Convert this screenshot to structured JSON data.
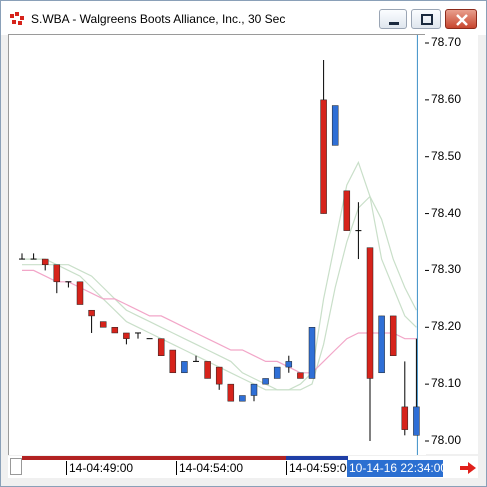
{
  "window": {
    "title": "S.WBA - Walgreens Boots Alliance, Inc., 30 Sec",
    "app_icon": "chart-app-icon",
    "controls": [
      "minimize-icon",
      "maximize-icon",
      "close-icon"
    ]
  },
  "colors": {
    "up_candle": "#2f6fd6",
    "down_candle": "#d6231b",
    "ma_fast": "#c9dfc9",
    "ma_slow": "#f2a6c8",
    "crosshair": "#3b8fc7",
    "scroll_active": "#1f3ea6",
    "scroll_inactive": "#b22222",
    "label_bg": "#2b6fd1",
    "arrow": "#e0201b"
  },
  "x_axis": {
    "ticks": [
      "14-04:49:00",
      "14-04:54:00",
      "14-04:59:00"
    ],
    "crosshair_label": "10-14-16 22:34:00"
  },
  "y_axis": {
    "ticks": [
      "78.70",
      "78.60",
      "78.50",
      "78.40",
      "78.30",
      "78.20",
      "78.10",
      "78.00"
    ]
  },
  "chart_data": {
    "type": "candlestick",
    "title": "S.WBA - Walgreens Boots Alliance, Inc., 30 Sec",
    "ylim": [
      77.98,
      78.72
    ],
    "candles": [
      {
        "open": 78.32,
        "high": 78.33,
        "low": 78.32,
        "close": 78.32
      },
      {
        "open": 78.32,
        "high": 78.33,
        "low": 78.32,
        "close": 78.32
      },
      {
        "open": 78.32,
        "high": 78.32,
        "low": 78.3,
        "close": 78.31
      },
      {
        "open": 78.31,
        "high": 78.31,
        "low": 78.26,
        "close": 78.28
      },
      {
        "open": 78.28,
        "high": 78.28,
        "low": 78.27,
        "close": 78.28
      },
      {
        "open": 78.28,
        "high": 78.28,
        "low": 78.24,
        "close": 78.24
      },
      {
        "open": 78.23,
        "high": 78.23,
        "low": 78.19,
        "close": 78.22
      },
      {
        "open": 78.21,
        "high": 78.21,
        "low": 78.2,
        "close": 78.2
      },
      {
        "open": 78.2,
        "high": 78.2,
        "low": 78.19,
        "close": 78.19
      },
      {
        "open": 78.19,
        "high": 78.19,
        "low": 78.17,
        "close": 78.18
      },
      {
        "open": 78.19,
        "high": 78.19,
        "low": 78.18,
        "close": 78.19
      },
      {
        "open": 78.18,
        "high": 78.18,
        "low": 78.18,
        "close": 78.18
      },
      {
        "open": 78.18,
        "high": 78.18,
        "low": 78.15,
        "close": 78.15
      },
      {
        "open": 78.16,
        "high": 78.16,
        "low": 78.12,
        "close": 78.12
      },
      {
        "open": 78.12,
        "high": 78.14,
        "low": 78.12,
        "close": 78.14
      },
      {
        "open": 78.14,
        "high": 78.15,
        "low": 78.14,
        "close": 78.14
      },
      {
        "open": 78.14,
        "high": 78.14,
        "low": 78.11,
        "close": 78.11
      },
      {
        "open": 78.13,
        "high": 78.13,
        "low": 78.09,
        "close": 78.1
      },
      {
        "open": 78.1,
        "high": 78.1,
        "low": 78.07,
        "close": 78.07
      },
      {
        "open": 78.07,
        "high": 78.08,
        "low": 78.07,
        "close": 78.08
      },
      {
        "open": 78.08,
        "high": 78.1,
        "low": 78.07,
        "close": 78.1
      },
      {
        "open": 78.1,
        "high": 78.11,
        "low": 78.1,
        "close": 78.11
      },
      {
        "open": 78.11,
        "high": 78.13,
        "low": 78.11,
        "close": 78.13
      },
      {
        "open": 78.13,
        "high": 78.15,
        "low": 78.12,
        "close": 78.14
      },
      {
        "open": 78.12,
        "high": 78.12,
        "low": 78.11,
        "close": 78.11
      },
      {
        "open": 78.11,
        "high": 78.2,
        "low": 78.11,
        "close": 78.2
      },
      {
        "open": 78.6,
        "high": 78.67,
        "low": 78.4,
        "close": 78.4
      },
      {
        "open": 78.52,
        "high": 78.59,
        "low": 78.52,
        "close": 78.59
      },
      {
        "open": 78.44,
        "high": 78.44,
        "low": 78.37,
        "close": 78.37
      },
      {
        "open": 78.37,
        "high": 78.42,
        "low": 78.32,
        "close": 78.37
      },
      {
        "open": 78.34,
        "high": 78.34,
        "low": 78.0,
        "close": 78.11
      },
      {
        "open": 78.12,
        "high": 78.22,
        "low": 78.12,
        "close": 78.22
      },
      {
        "open": 78.22,
        "high": 78.22,
        "low": 78.15,
        "close": 78.15
      },
      {
        "open": 78.06,
        "high": 78.14,
        "low": 78.01,
        "close": 78.02
      },
      {
        "open": 78.01,
        "high": 78.18,
        "low": 78.01,
        "close": 78.06
      }
    ],
    "moving_averages": [
      {
        "name": "fast",
        "values": [
          78.32,
          78.32,
          78.32,
          78.31,
          78.3,
          78.29,
          78.27,
          78.25,
          78.23,
          78.21,
          78.2,
          78.19,
          78.18,
          78.17,
          78.16,
          78.15,
          78.14,
          78.13,
          78.12,
          78.11,
          78.1,
          78.09,
          78.09,
          78.09,
          78.1,
          78.12,
          78.25,
          78.35,
          78.45,
          78.49,
          78.43,
          78.32,
          78.27,
          78.22,
          78.2
        ]
      },
      {
        "name": "medium",
        "values": [
          78.31,
          78.31,
          78.31,
          78.31,
          78.31,
          78.3,
          78.29,
          78.27,
          78.25,
          78.23,
          78.22,
          78.21,
          78.2,
          78.19,
          78.18,
          78.17,
          78.16,
          78.15,
          78.14,
          78.12,
          78.11,
          78.1,
          78.09,
          78.09,
          78.09,
          78.1,
          78.17,
          78.27,
          78.35,
          78.41,
          78.43,
          78.39,
          78.32,
          78.27,
          78.23
        ]
      },
      {
        "name": "slow",
        "values": [
          78.3,
          78.3,
          78.29,
          78.28,
          78.28,
          78.27,
          78.26,
          78.25,
          78.25,
          78.24,
          78.23,
          78.22,
          78.22,
          78.21,
          78.2,
          78.19,
          78.18,
          78.17,
          78.16,
          78.16,
          78.15,
          78.14,
          78.14,
          78.13,
          78.12,
          78.12,
          78.14,
          78.16,
          78.18,
          78.19,
          78.19,
          78.19,
          78.19,
          78.18,
          78.18
        ]
      }
    ],
    "crosshair_index": 34
  }
}
